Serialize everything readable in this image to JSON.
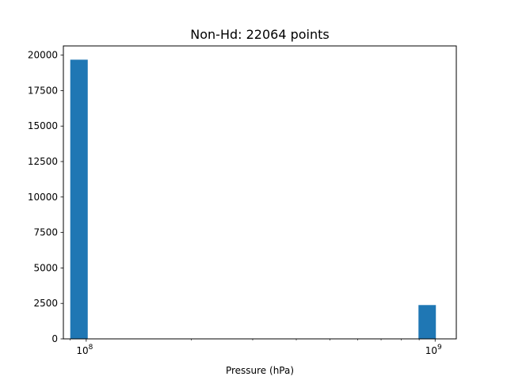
{
  "chart_data": {
    "type": "bar",
    "title": "Non-Hd: 22064 points",
    "xlabel": "Pressure (hPa)",
    "ylabel": "",
    "x_scale": "log",
    "xlim": [
      86000000,
      1150000000
    ],
    "ylim": [
      0,
      20650
    ],
    "grid": false,
    "legend": "none",
    "bar_color": "#1f77b4",
    "yticks": [
      0,
      2500,
      5000,
      7500,
      10000,
      12500,
      15000,
      17500,
      20000
    ],
    "xticks": [
      {
        "value": 100000000,
        "base": "10",
        "exp": "8"
      },
      {
        "value": 1000000000,
        "base": "10",
        "exp": "9"
      }
    ],
    "bins": [
      {
        "x0": 90000000,
        "x1": 101000000,
        "count": 19680
      },
      {
        "x0": 101000000,
        "x1": 113000000,
        "count": 0
      },
      {
        "x0": 113000000,
        "x1": 127000000,
        "count": 0
      },
      {
        "x0": 127000000,
        "x1": 142000000,
        "count": 0
      },
      {
        "x0": 142000000,
        "x1": 160000000,
        "count": 0
      },
      {
        "x0": 160000000,
        "x1": 179000000,
        "count": 0
      },
      {
        "x0": 179000000,
        "x1": 201000000,
        "count": 0
      },
      {
        "x0": 201000000,
        "x1": 225000000,
        "count": 0
      },
      {
        "x0": 225000000,
        "x1": 253000000,
        "count": 0
      },
      {
        "x0": 253000000,
        "x1": 284000000,
        "count": 0
      },
      {
        "x0": 284000000,
        "x1": 318000000,
        "count": 0
      },
      {
        "x0": 318000000,
        "x1": 357000000,
        "count": 0
      },
      {
        "x0": 357000000,
        "x1": 401000000,
        "count": 0
      },
      {
        "x0": 401000000,
        "x1": 450000000,
        "count": 0
      },
      {
        "x0": 450000000,
        "x1": 504000000,
        "count": 0
      },
      {
        "x0": 504000000,
        "x1": 566000000,
        "count": 0
      },
      {
        "x0": 566000000,
        "x1": 635000000,
        "count": 0
      },
      {
        "x0": 635000000,
        "x1": 712000000,
        "count": 0
      },
      {
        "x0": 712000000,
        "x1": 799000000,
        "count": 0
      },
      {
        "x0": 799000000,
        "x1": 896000000,
        "count": 0
      },
      {
        "x0": 896000000,
        "x1": 1005000000,
        "count": 2384
      }
    ]
  }
}
